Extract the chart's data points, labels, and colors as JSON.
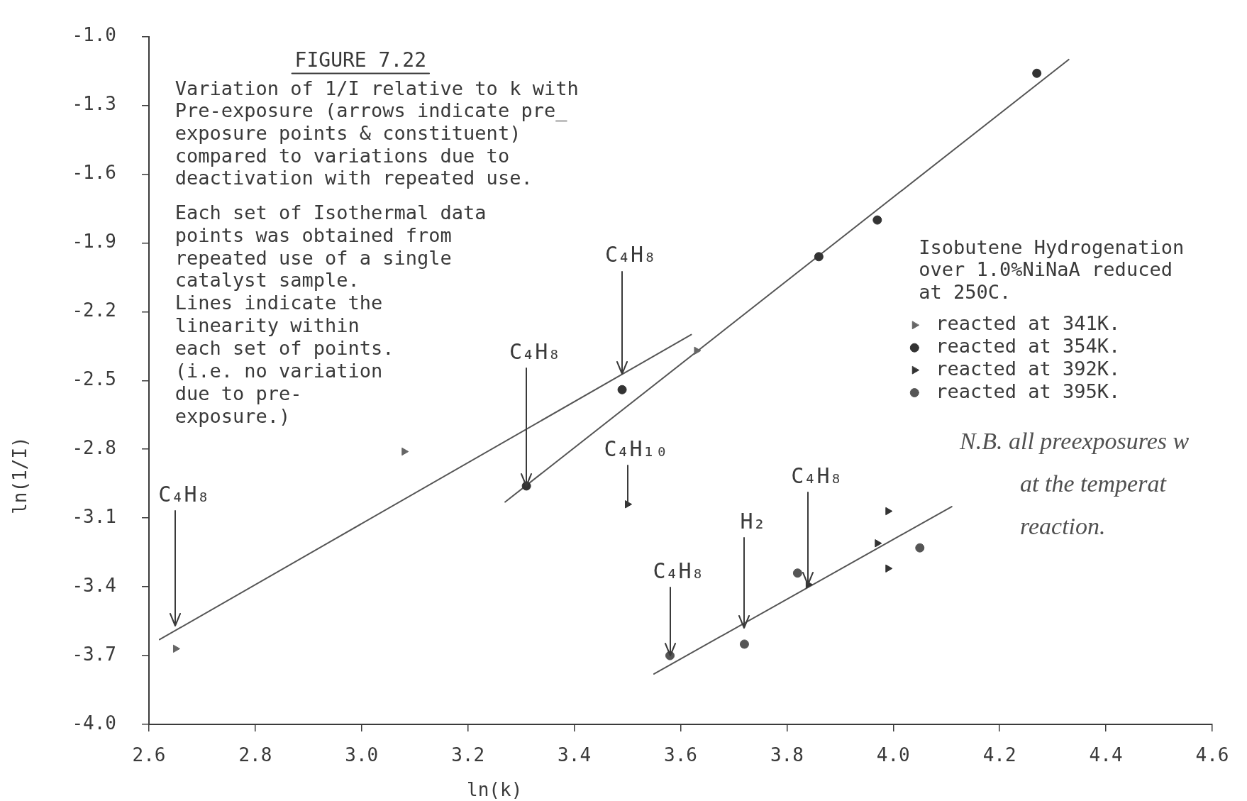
{
  "chart_data": {
    "type": "scatter",
    "title": "FIGURE 7.22",
    "xlabel": "ln(k)",
    "ylabel": "ln(1/I)",
    "legend_title": "Isobutene Hydrogenation\nover 1.0%NiNaA reduced\nat 250C.",
    "legend": "right",
    "xlim": [
      2.6,
      4.6
    ],
    "xticks": [
      2.6,
      2.8,
      {
        "value": 3,
        "label": "3.0"
      },
      3.2,
      3.4,
      3.6,
      3.8,
      {
        "value": 4,
        "label": "4.0"
      },
      4.2,
      4.4,
      4.6
    ],
    "ylim": [
      -4,
      -1
    ],
    "yticks": [
      {
        "value": -1,
        "label": "-1.0"
      },
      -1.3,
      -1.6,
      -1.9,
      -2.2,
      -2.5,
      -2.8,
      -3.1,
      -3.4,
      -3.7,
      {
        "value": -4,
        "label": "-4.0"
      }
    ],
    "series": [
      {
        "name": "reacted at 341K.",
        "type": "scatter",
        "marker": "triangle",
        "color": "#666666",
        "x": [
          2.65,
          3.08,
          3.63
        ],
        "values": [
          -3.67,
          -2.81,
          -2.37
        ]
      },
      {
        "name": "reacted at 354K.",
        "type": "scatter",
        "marker": "circle",
        "color": "#333333",
        "x": [
          3.31,
          3.49,
          3.86,
          3.97,
          4.27
        ],
        "values": [
          -2.96,
          -2.54,
          -1.96,
          -1.8,
          -1.16
        ]
      },
      {
        "name": "reacted at 392K.",
        "type": "scatter",
        "marker": "triangle",
        "color": "#333333",
        "x": [
          3.5,
          3.84,
          3.97,
          3.99,
          3.99
        ],
        "values": [
          -3.04,
          -3.39,
          -3.21,
          -3.07,
          -3.32
        ]
      },
      {
        "name": "reacted at 395K.",
        "type": "scatter",
        "marker": "circle",
        "color": "#555555",
        "x": [
          3.58,
          3.72,
          3.82,
          4.05
        ],
        "values": [
          -3.7,
          -3.65,
          -3.34,
          -3.23
        ]
      },
      {
        "type": "line",
        "color": "#555555",
        "x": [
          2.62,
          3.62
        ],
        "values": [
          -3.63,
          -2.3
        ]
      },
      {
        "type": "line",
        "color": "#555555",
        "x": [
          3.27,
          4.33
        ],
        "values": [
          -3.03,
          -1.1
        ]
      },
      {
        "type": "line",
        "color": "#555555",
        "x": [
          3.55,
          4.11
        ],
        "values": [
          -3.78,
          -3.05
        ]
      }
    ],
    "annotations": [
      "Variation of 1/I relative to k with\nPre-exposure (arrows indicate pre_\nexposure points & constituent)\ncompared to variations due to\ndeactivation with repeated use.",
      "Each set of Isothermal data\npoints was obtained from\nrepeated use of a single\ncatalyst sample.\nLines indicate the\nlinearity within\neach set of points.\n(i.e. no variation\ndue to pre-\nexposure.)",
      "N.B. all preexposures w\nat the temperat\nreaction.",
      {
        "text": "C₄H₈",
        "x": 2.65,
        "y": -3.57
      },
      {
        "text": "C₄H₈",
        "x": 3.31,
        "y": -2.96
      },
      {
        "text": "C₄H₈",
        "x": 3.49,
        "y": -2.47
      },
      {
        "text": "C₄H₁₀",
        "x": 3.5,
        "y": -3.04
      },
      {
        "text": "C₄H₈",
        "x": 3.58,
        "y": -3.7
      },
      {
        "text": "H₂",
        "x": 3.72,
        "y": -3.58
      },
      {
        "text": "C₄H₈",
        "x": 3.84,
        "y": -3.39
      }
    ]
  }
}
